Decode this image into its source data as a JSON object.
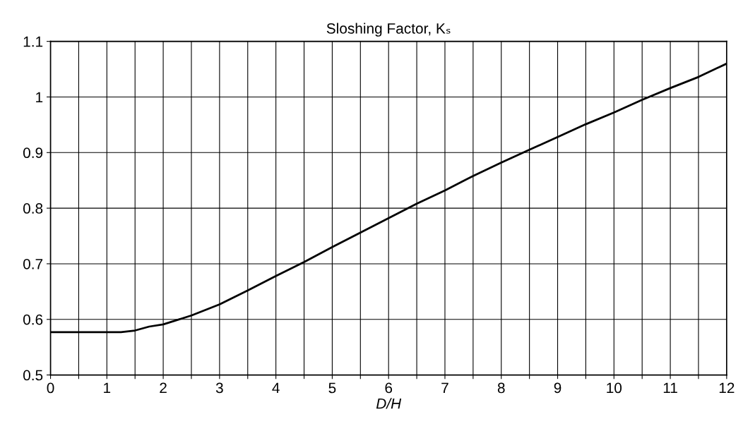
{
  "chart_data": {
    "type": "line",
    "title": "Sloshing Factor, Kₛ",
    "xlabel": "D/H",
    "series": [
      {
        "color": "#000000",
        "x": [
          0,
          0.5,
          1,
          1.25,
          1.5,
          1.75,
          2,
          2.5,
          3,
          3.5,
          4,
          4.5,
          5,
          5.5,
          6,
          6.5,
          7,
          7.5,
          8,
          8.5,
          9,
          9.5,
          10,
          10.5,
          11,
          11.5,
          12
        ],
        "values": [
          0.577,
          0.577,
          0.577,
          0.577,
          0.58,
          0.587,
          0.591,
          0.607,
          0.627,
          0.652,
          0.678,
          0.703,
          0.73,
          0.756,
          0.782,
          0.808,
          0.832,
          0.858,
          0.882,
          0.905,
          0.928,
          0.951,
          0.972,
          0.995,
          1.016,
          1.036,
          1.06
        ]
      }
    ],
    "xlim": [
      0,
      12
    ],
    "xticks": [
      0,
      {
        "value": 0.5,
        "label": null
      },
      1,
      {
        "value": 1.5,
        "label": null
      },
      2,
      {
        "value": 2.5,
        "label": null
      },
      3,
      {
        "value": 3.5,
        "label": null
      },
      4,
      {
        "value": 4.5,
        "label": null
      },
      5,
      {
        "value": 5.5,
        "label": null
      },
      6,
      {
        "value": 6.5,
        "label": null
      },
      7,
      {
        "value": 7.5,
        "label": null
      },
      8,
      {
        "value": 8.5,
        "label": null
      },
      9,
      {
        "value": 9.5,
        "label": null
      },
      10,
      {
        "value": 10.5,
        "label": null
      },
      11,
      {
        "value": 11.5,
        "label": null
      },
      12
    ],
    "ylim": [
      0.5,
      1.1
    ],
    "yticks": [
      0.5,
      0.6,
      0.7,
      0.8,
      0.9,
      1,
      1.1
    ],
    "grid": true,
    "marker": "none",
    "line_style": "solid"
  }
}
